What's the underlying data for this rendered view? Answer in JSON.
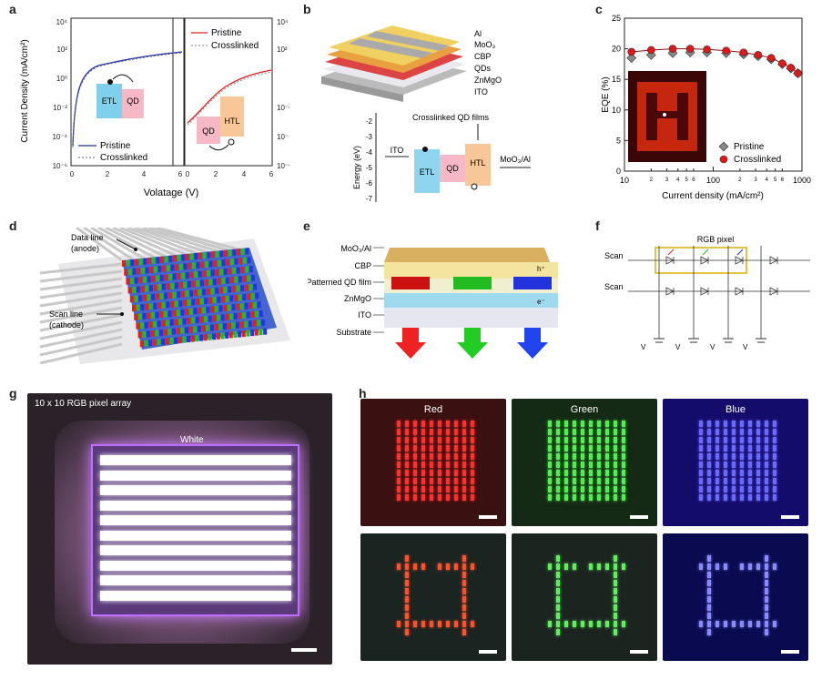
{
  "panels": {
    "a": "a",
    "b": "b",
    "c": "c",
    "d": "d",
    "e": "e",
    "f": "f",
    "g": "g",
    "h": "h"
  },
  "a": {
    "ylabel": "Current Density (mA/cm²)",
    "xlabel": "Volatage (V)",
    "left_legend": [
      "Pristine",
      "Crosslinked"
    ],
    "right_legend": [
      "Pristine",
      "Crosslinked"
    ],
    "left_inset": [
      "ETL",
      "QD"
    ],
    "right_inset": [
      "QD",
      "HTL"
    ],
    "left_yticks": [
      "10⁴",
      "10²",
      "10⁰",
      "10⁻²",
      "10⁻⁴",
      "10⁻⁶"
    ],
    "right_yticks": [
      "10⁴",
      "10²",
      "10⁻²",
      "10⁻⁴",
      "10⁻⁶"
    ],
    "xticks_left": [
      "0",
      "2",
      "4",
      "6"
    ],
    "xticks_right": [
      "0",
      "2",
      "4",
      "6"
    ]
  },
  "b": {
    "layers": [
      "Al",
      "MoO₃",
      "CBP",
      "QDs",
      "ZnMgO",
      "ITO"
    ],
    "band_title": "Crosslinked QD films",
    "band_labels": [
      "ITO",
      "ETL",
      "QD",
      "HTL",
      "MoO₃/Al"
    ],
    "ylabel": "Energy (eV)",
    "yticks": [
      "-2",
      "-3",
      "-4",
      "-5",
      "-6",
      "-7"
    ]
  },
  "chart_data": {
    "type": "scatter",
    "title": "",
    "xlabel": "Current density (mA/cm²)",
    "ylabel": "EQE (%)",
    "xscale": "log",
    "xlim": [
      10,
      1000
    ],
    "ylim": [
      0,
      25
    ],
    "xticks": [
      "10",
      "100",
      "1000"
    ],
    "minor_xtick_labels": [
      "2",
      "3",
      "4",
      "5",
      "6",
      "2",
      "3",
      "4",
      "5",
      "6"
    ],
    "yticks": [
      "0",
      "5",
      "10",
      "15",
      "20",
      "25"
    ],
    "legend_position": "bottom-right",
    "series": [
      {
        "name": "Pristine",
        "marker": "diamond",
        "color": "#888888",
        "x": [
          12,
          20,
          35,
          55,
          85,
          140,
          220,
          320,
          450,
          600,
          750,
          900
        ],
        "y": [
          18.5,
          19.0,
          19.3,
          19.4,
          19.4,
          19.3,
          19.1,
          18.8,
          18.3,
          17.5,
          16.8,
          16.0
        ]
      },
      {
        "name": "Crosslinked",
        "marker": "circle",
        "color": "#e01818",
        "x": [
          12,
          20,
          35,
          55,
          85,
          140,
          220,
          320,
          450,
          600,
          750,
          900
        ],
        "y": [
          19.5,
          19.8,
          20.0,
          20.0,
          19.9,
          19.7,
          19.4,
          19.0,
          18.5,
          17.6,
          16.9,
          16.0
        ]
      }
    ]
  },
  "d": {
    "data_line": [
      "Data line",
      "(anode)"
    ],
    "scan_line": [
      "Scan line",
      "(cathode)"
    ]
  },
  "e": {
    "layers": [
      "MoO₃/Al",
      "CBP",
      "Patterned QD film",
      "ZnMgO",
      "ITO",
      "Substrate"
    ],
    "h": "h⁺",
    "e": "e⁻"
  },
  "f": {
    "scan1": "Scan",
    "scan2": "Scan",
    "rgb": "RGB pixel",
    "vdata": "V"
  },
  "g": {
    "title": "10 x 10 RGB pixel array",
    "white": "White"
  },
  "h": {
    "red": "Red",
    "green": "Green",
    "blue": "Blue"
  },
  "colors": {
    "red": "#e01818",
    "green": "#2ec22e",
    "blue": "#2233ee",
    "gray": "#888888"
  }
}
